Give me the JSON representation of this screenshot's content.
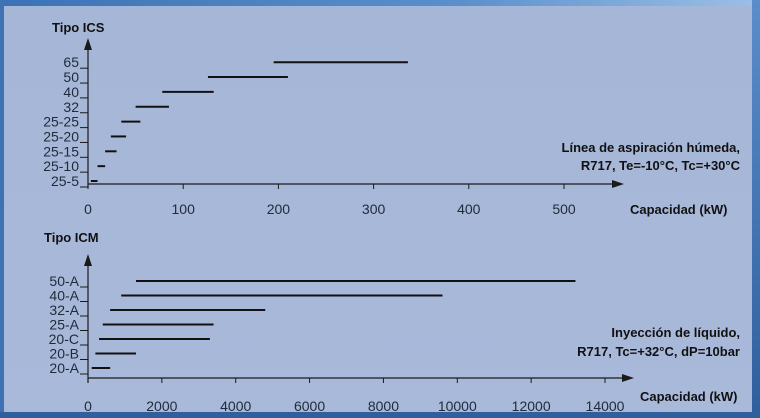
{
  "chart_data": [
    {
      "type": "range-bar",
      "title": "Tipo ICS",
      "xlabel": "Capacidad (kW)",
      "annotation": [
        "Línea de aspiración húmeda,",
        "R717, Te=-10°C, Tc=+30°C"
      ],
      "xlim": [
        0,
        550
      ],
      "x_ticks": [
        0,
        100,
        200,
        300,
        400,
        500
      ],
      "categories": [
        "25-5",
        "25-10",
        "25-15",
        "25-20",
        "25-25",
        "32",
        "40",
        "50",
        "65"
      ],
      "ranges": [
        [
          3,
          10
        ],
        [
          10,
          18
        ],
        [
          18,
          30
        ],
        [
          24,
          40
        ],
        [
          35,
          55
        ],
        [
          50,
          85
        ],
        [
          78,
          132
        ],
        [
          126,
          210
        ],
        [
          195,
          336
        ]
      ]
    },
    {
      "type": "range-bar",
      "title": "Tipo ICM",
      "xlabel": "Capacidad (kW)",
      "annotation": [
        "Inyección de líquido,",
        "R717, Tc=+32°C, dP=10bar"
      ],
      "xlim": [
        0,
        15200
      ],
      "x_ticks": [
        0,
        2000,
        4000,
        6000,
        8000,
        10000,
        12000,
        14000
      ],
      "categories": [
        "20-A",
        "20-B",
        "20-C",
        "25-A",
        "32-A",
        "40-A",
        "50-A"
      ],
      "ranges": [
        [
          100,
          600
        ],
        [
          200,
          1300
        ],
        [
          300,
          3300
        ],
        [
          400,
          3400
        ],
        [
          600,
          4800
        ],
        [
          900,
          9600
        ],
        [
          1300,
          13200
        ]
      ]
    }
  ]
}
